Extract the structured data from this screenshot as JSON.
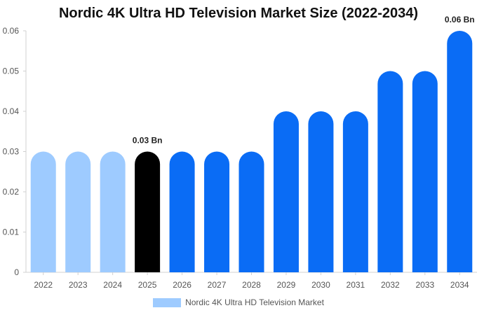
{
  "chart_data": {
    "type": "bar",
    "title": "Nordic 4K Ultra HD Television Market Size (2022-2034)",
    "xlabel": "",
    "ylabel": "",
    "categories": [
      "2022",
      "2023",
      "2024",
      "2025",
      "2026",
      "2027",
      "2028",
      "2029",
      "2030",
      "2031",
      "2032",
      "2033",
      "2034"
    ],
    "series": [
      {
        "name": "Nordic 4K Ultra HD Television Market",
        "values": [
          0.03,
          0.03,
          0.03,
          0.03,
          0.03,
          0.03,
          0.03,
          0.04,
          0.04,
          0.04,
          0.05,
          0.05,
          0.06
        ]
      }
    ],
    "bar_colors": [
      "#9ecbff",
      "#9ecbff",
      "#9ecbff",
      "#000000",
      "#0a6cf5",
      "#0a6cf5",
      "#0a6cf5",
      "#0a6cf5",
      "#0a6cf5",
      "#0a6cf5",
      "#0a6cf5",
      "#0a6cf5",
      "#0a6cf5"
    ],
    "ylim": [
      0,
      0.06
    ],
    "yticks": [
      "0",
      "0.01",
      "0.02",
      "0.03",
      "0.04",
      "0.05",
      "0.06"
    ],
    "data_labels": [
      {
        "category": "2025",
        "text": "0.03 Bn"
      },
      {
        "category": "2034",
        "text": "0.06 Bn"
      }
    ],
    "legend": {
      "position": "bottom",
      "label": "Nordic 4K Ultra HD Television Market",
      "color": "#9ecbff"
    },
    "grid": false
  }
}
